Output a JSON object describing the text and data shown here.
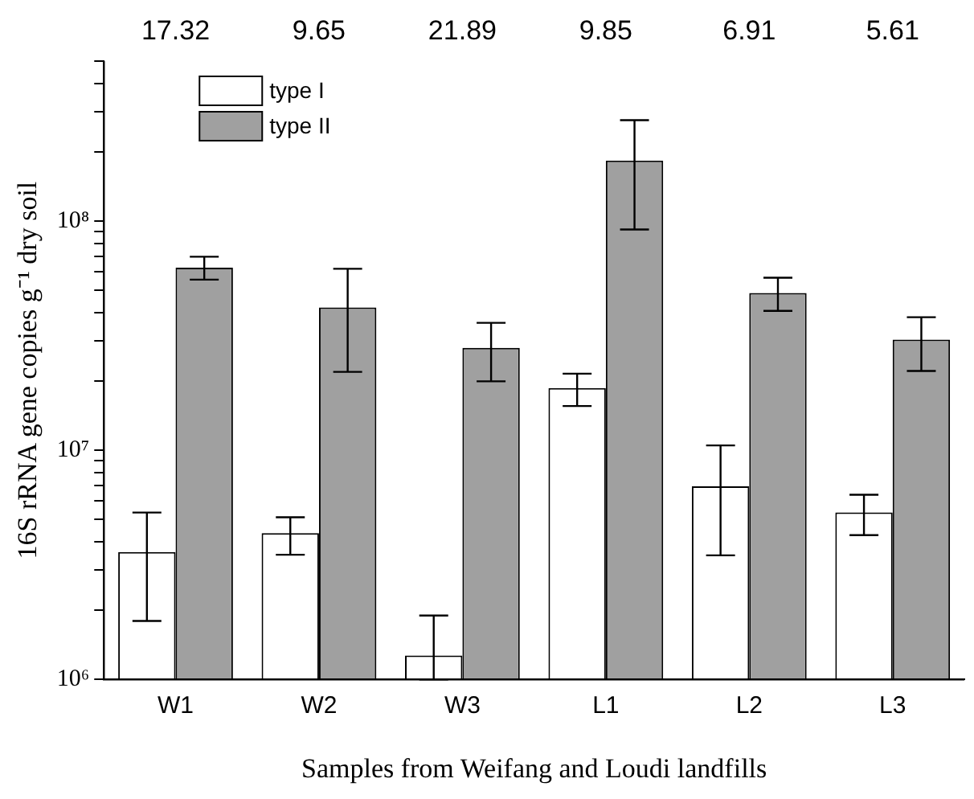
{
  "chart_data": {
    "type": "bar",
    "xlabel": "Samples from Weifang and Loudi landfills",
    "ylabel": "16S rRNA gene copies g⁻¹ dry soil",
    "categories": [
      "W1",
      "W2",
      "W3",
      "L1",
      "L2",
      "L3"
    ],
    "series": [
      {
        "name": "type I",
        "color": "#ffffff",
        "values": [
          3600000,
          4350000,
          1270000,
          18700000,
          6970000,
          5350000
        ],
        "errors": [
          [
            1800000,
            5350000
          ],
          [
            3500000,
            5100000
          ],
          [
            1000000,
            1900000
          ],
          [
            15600000,
            21600000
          ],
          [
            3480000,
            10500000
          ],
          [
            4260000,
            6400000
          ]
        ]
      },
      {
        "name": "type II",
        "color": "#a0a0a0",
        "values": [
          62700000,
          42000000,
          28000000,
          184000000,
          48600000,
          30400000
        ],
        "errors": [
          [
            55600000,
            70000000
          ],
          [
            22000000,
            62000000
          ],
          [
            20000000,
            36000000
          ],
          [
            92000000,
            276000000
          ],
          [
            40600000,
            56700000
          ],
          [
            22200000,
            38100000
          ]
        ]
      }
    ],
    "log": "y",
    "ylim": [
      1000000,
      500000000
    ],
    "yticks": [
      {
        "value": 1000000,
        "label": "10⁶"
      },
      {
        "value": 2000000,
        "label": null
      },
      {
        "value": 3000000,
        "label": null
      },
      {
        "value": 4000000,
        "label": null
      },
      {
        "value": 5000000,
        "label": null
      },
      {
        "value": 6000000,
        "label": null
      },
      {
        "value": 7000000,
        "label": null
      },
      {
        "value": 8000000,
        "label": null
      },
      {
        "value": 9000000,
        "label": null
      },
      {
        "value": 10000000,
        "label": "10⁷"
      },
      {
        "value": 20000000,
        "label": null
      },
      {
        "value": 30000000,
        "label": null
      },
      {
        "value": 40000000,
        "label": null
      },
      {
        "value": 50000000,
        "label": null
      },
      {
        "value": 60000000,
        "label": null
      },
      {
        "value": 70000000,
        "label": null
      },
      {
        "value": 80000000,
        "label": null
      },
      {
        "value": 90000000,
        "label": null
      },
      {
        "value": 100000000,
        "label": "10⁸"
      },
      {
        "value": 200000000,
        "label": null
      },
      {
        "value": 300000000,
        "label": null
      },
      {
        "value": 400000000,
        "label": null
      },
      {
        "value": 500000000,
        "label": null
      }
    ],
    "legend": "top left",
    "grid": false,
    "annotations": [
      "17.32",
      "9.65",
      "21.89",
      "9.85",
      "6.91",
      "5.61"
    ]
  }
}
